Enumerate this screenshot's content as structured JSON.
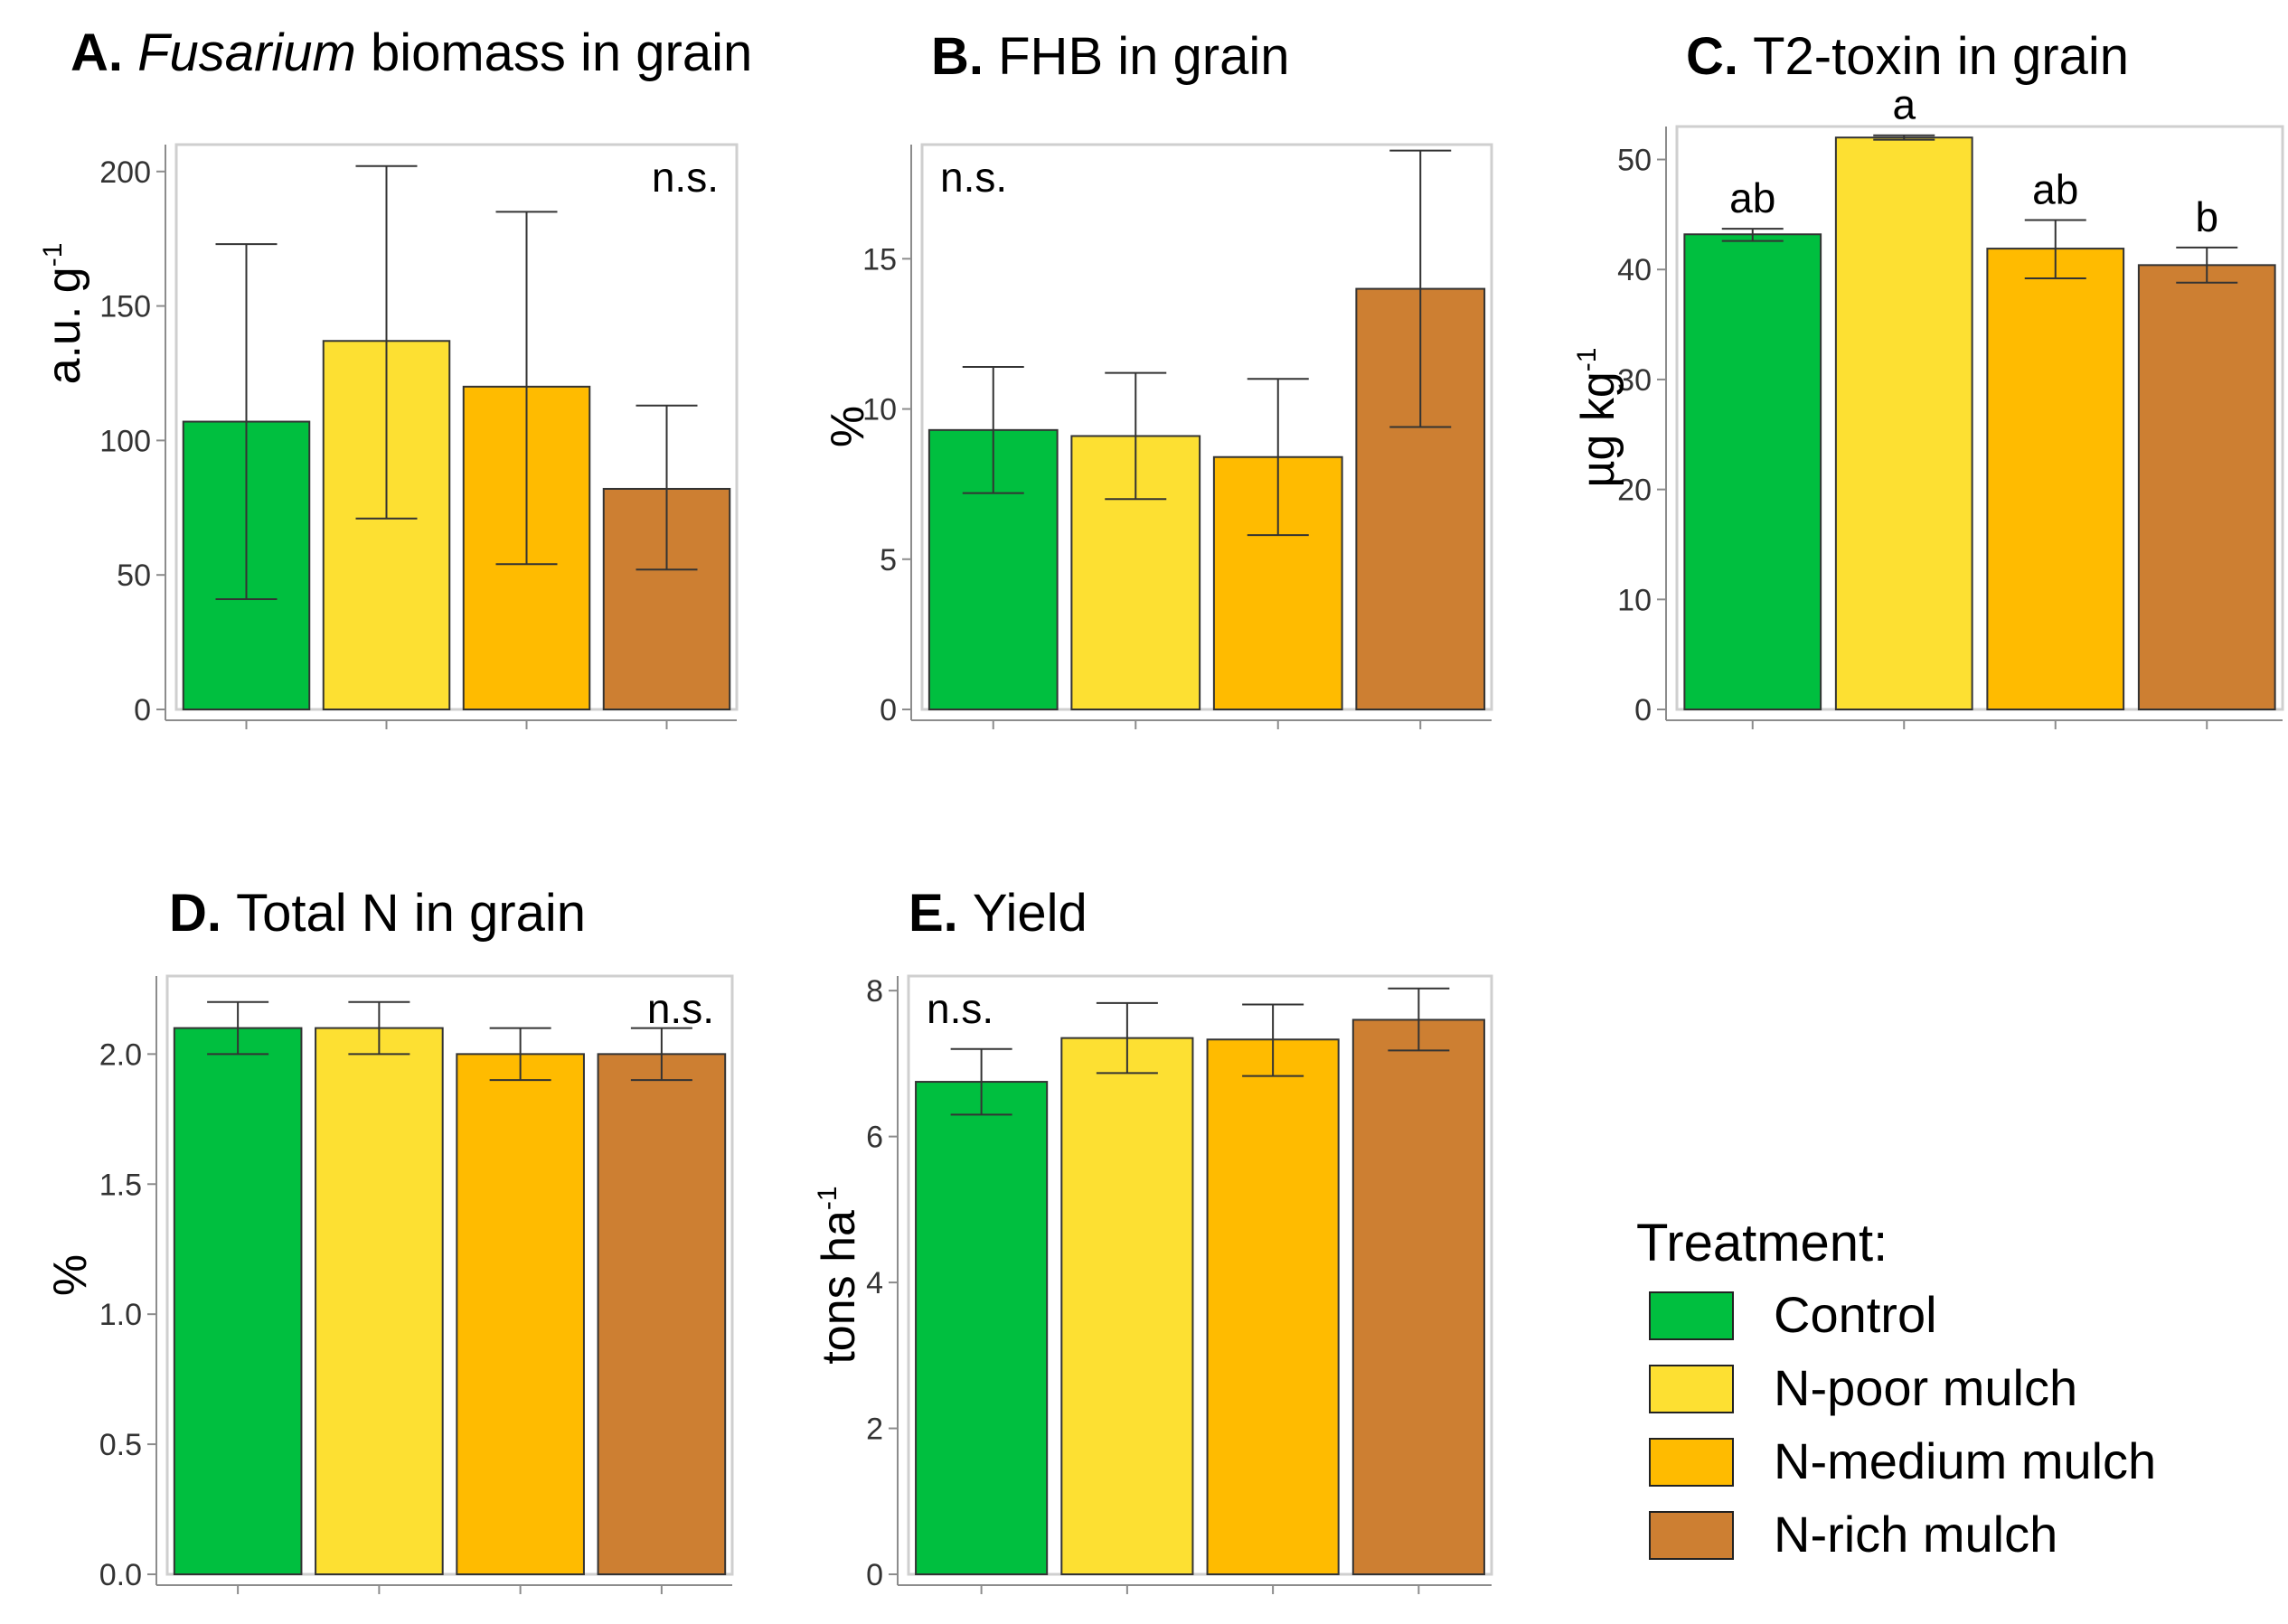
{
  "legend": {
    "title": "Treatment:",
    "entries": [
      {
        "label": "Control",
        "color": "#00bf3f"
      },
      {
        "label": "N-poor mulch",
        "color": "#fde032"
      },
      {
        "label": "N-medium mulch",
        "color": "#ffbb00"
      },
      {
        "label": "N-rich mulch",
        "color": "#cd7f32"
      }
    ]
  },
  "chart_data": [
    {
      "panel": "A.",
      "type": "bar",
      "title_italic": "Fusarium",
      "title_rest": "biomass in grain",
      "ylabel": "a.u. g",
      "ylabel_sup": "-1",
      "categories": [
        "Control",
        "N-poor mulch",
        "N-medium mulch",
        "N-rich mulch"
      ],
      "values": [
        107,
        137,
        120,
        82
      ],
      "error_low": [
        41,
        71,
        54,
        52
      ],
      "error_high": [
        173,
        202,
        185,
        113
      ],
      "ylim": [
        0,
        210
      ],
      "yticks": [
        0,
        50,
        100,
        150,
        200
      ],
      "ytick_labels": [
        "0",
        "50",
        "100",
        "150",
        "200"
      ],
      "annotations": [
        {
          "text": "n.s.",
          "position": "top-right"
        }
      ],
      "letters": []
    },
    {
      "panel": "B.",
      "type": "bar",
      "title_italic": "",
      "title_rest": "FHB in grain",
      "ylabel": "%",
      "ylabel_sup": "",
      "categories": [
        "Control",
        "N-poor mulch",
        "N-medium mulch",
        "N-rich mulch"
      ],
      "values": [
        9.3,
        9.1,
        8.4,
        14.0
      ],
      "error_low": [
        7.2,
        7.0,
        5.8,
        9.4
      ],
      "error_high": [
        11.4,
        11.2,
        11.0,
        18.6
      ],
      "ylim": [
        0,
        18.8
      ],
      "yticks": [
        0,
        5,
        10,
        15
      ],
      "ytick_labels": [
        "0",
        "5",
        "10",
        "15"
      ],
      "annotations": [
        {
          "text": "n.s.",
          "position": "top-left"
        }
      ],
      "letters": []
    },
    {
      "panel": "C.",
      "type": "bar",
      "title_italic": "",
      "title_rest": "T2-toxin in grain",
      "ylabel": "µg kg",
      "ylabel_sup": "-1",
      "categories": [
        "Control",
        "N-poor mulch",
        "N-medium mulch",
        "N-rich mulch"
      ],
      "values": [
        43.2,
        52.0,
        41.9,
        40.4
      ],
      "error_low": [
        42.6,
        51.8,
        39.2,
        38.8
      ],
      "error_high": [
        43.7,
        52.2,
        44.5,
        42.0
      ],
      "ylim": [
        0,
        53
      ],
      "yticks": [
        0,
        10,
        20,
        30,
        40,
        50
      ],
      "ytick_labels": [
        "0",
        "10",
        "20",
        "30",
        "40",
        "50"
      ],
      "annotations": [],
      "letters": [
        "ab",
        "a",
        "ab",
        "b"
      ]
    },
    {
      "panel": "D.",
      "type": "bar",
      "title_italic": "",
      "title_rest": "Total N in grain",
      "ylabel": "%",
      "ylabel_sup": "",
      "categories": [
        "Control",
        "N-poor mulch",
        "N-medium mulch",
        "N-rich mulch"
      ],
      "values": [
        2.1,
        2.1,
        2.0,
        2.0
      ],
      "error_low": [
        2.0,
        2.0,
        1.9,
        1.9
      ],
      "error_high": [
        2.2,
        2.2,
        2.1,
        2.1
      ],
      "ylim": [
        0,
        2.3
      ],
      "yticks": [
        0,
        0.5,
        1.0,
        1.5,
        2.0
      ],
      "ytick_labels": [
        "0.0",
        "0.5",
        "1.0",
        "1.5",
        "2.0"
      ],
      "annotations": [
        {
          "text": "n.s.",
          "position": "top-right"
        }
      ],
      "letters": []
    },
    {
      "panel": "E.",
      "type": "bar",
      "title_italic": "",
      "title_rest": "Yield",
      "ylabel": "tons ha",
      "ylabel_sup": "-1",
      "categories": [
        "Control",
        "N-poor mulch",
        "N-medium mulch",
        "N-rich mulch"
      ],
      "values": [
        6.75,
        7.35,
        7.33,
        7.6
      ],
      "error_low": [
        6.3,
        6.87,
        6.83,
        7.18
      ],
      "error_high": [
        7.2,
        7.83,
        7.81,
        8.03
      ],
      "ylim": [
        0,
        8.2
      ],
      "yticks": [
        0,
        2,
        4,
        6,
        8
      ],
      "ytick_labels": [
        "0",
        "2",
        "4",
        "6",
        "8"
      ],
      "annotations": [
        {
          "text": "n.s.",
          "position": "top-left"
        }
      ],
      "letters": []
    }
  ]
}
